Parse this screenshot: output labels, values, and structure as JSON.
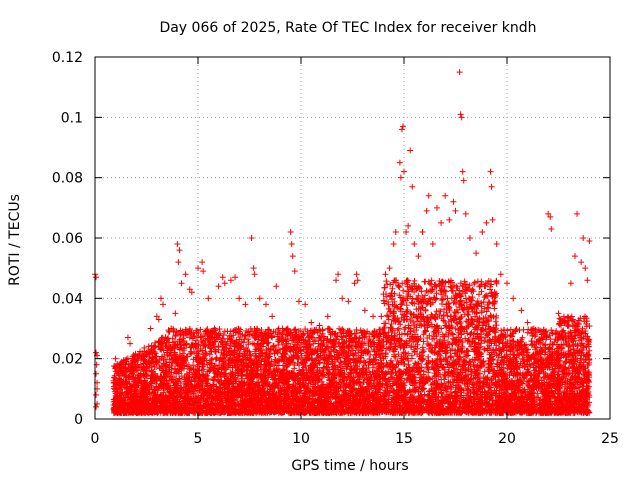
{
  "chart_data": {
    "type": "scatter",
    "title": "Day 066 of 2025, Rate Of TEC Index for receiver kndh",
    "xlabel": "GPS time / hours",
    "ylabel": "ROTI / TECUs",
    "xlim": [
      0,
      25
    ],
    "ylim": [
      0,
      0.12
    ],
    "x_ticks": [
      0,
      5,
      10,
      15,
      20,
      25
    ],
    "x_tick_labels": [
      "0",
      "5",
      "10",
      "15",
      "20",
      "25"
    ],
    "y_ticks": [
      0,
      0.02,
      0.04,
      0.06,
      0.08,
      0.1,
      0.12
    ],
    "y_tick_labels": [
      "0",
      "0.02",
      "0.04",
      "0.06",
      "0.08",
      "0.1",
      "0.12"
    ],
    "grid": true,
    "marker": "+",
    "color": "#ff0000",
    "series": [
      {
        "name": "ROTI",
        "points": [
          [
            0.0,
            0.048
          ],
          [
            0.05,
            0.047
          ],
          [
            0.05,
            0.022
          ],
          [
            0.1,
            0.021
          ],
          [
            0.05,
            0.015
          ],
          [
            0.1,
            0.012
          ],
          [
            0.05,
            0.008
          ],
          [
            0.1,
            0.005
          ],
          [
            0.05,
            0.004
          ],
          [
            0.1,
            0.01
          ],
          [
            0.08,
            0.018
          ],
          [
            1.0,
            0.02
          ],
          [
            1.2,
            0.018
          ],
          [
            1.5,
            0.014
          ],
          [
            1.6,
            0.027
          ],
          [
            1.7,
            0.025
          ],
          [
            2.0,
            0.016
          ],
          [
            2.5,
            0.022
          ],
          [
            2.7,
            0.03
          ],
          [
            3.0,
            0.034
          ],
          [
            3.1,
            0.033
          ],
          [
            3.2,
            0.04
          ],
          [
            3.3,
            0.038
          ],
          [
            3.5,
            0.026
          ],
          [
            3.7,
            0.03
          ],
          [
            3.9,
            0.035
          ],
          [
            4.0,
            0.058
          ],
          [
            4.1,
            0.056
          ],
          [
            4.05,
            0.052
          ],
          [
            4.2,
            0.045
          ],
          [
            4.4,
            0.048
          ],
          [
            4.6,
            0.043
          ],
          [
            4.7,
            0.042
          ],
          [
            5.0,
            0.05
          ],
          [
            5.2,
            0.052
          ],
          [
            5.25,
            0.049
          ],
          [
            5.5,
            0.04
          ],
          [
            5.8,
            0.03
          ],
          [
            6.0,
            0.044
          ],
          [
            6.2,
            0.047
          ],
          [
            6.3,
            0.045
          ],
          [
            6.6,
            0.046
          ],
          [
            6.8,
            0.047
          ],
          [
            7.0,
            0.04
          ],
          [
            7.3,
            0.038
          ],
          [
            7.6,
            0.06
          ],
          [
            7.7,
            0.05
          ],
          [
            7.75,
            0.048
          ],
          [
            8.0,
            0.04
          ],
          [
            8.3,
            0.038
          ],
          [
            8.6,
            0.034
          ],
          [
            8.8,
            0.044
          ],
          [
            9.1,
            0.03
          ],
          [
            9.5,
            0.062
          ],
          [
            9.55,
            0.058
          ],
          [
            9.6,
            0.054
          ],
          [
            9.7,
            0.049
          ],
          [
            9.9,
            0.039
          ],
          [
            10.2,
            0.038
          ],
          [
            10.5,
            0.032
          ],
          [
            10.9,
            0.031
          ],
          [
            11.3,
            0.034
          ],
          [
            11.7,
            0.046
          ],
          [
            11.8,
            0.048
          ],
          [
            12.0,
            0.04
          ],
          [
            12.3,
            0.039
          ],
          [
            12.6,
            0.045
          ],
          [
            12.7,
            0.048
          ],
          [
            12.75,
            0.046
          ],
          [
            13.1,
            0.036
          ],
          [
            13.5,
            0.034
          ],
          [
            13.9,
            0.034
          ],
          [
            14.1,
            0.048
          ],
          [
            14.3,
            0.05
          ],
          [
            14.5,
            0.058
          ],
          [
            14.6,
            0.062
          ],
          [
            14.8,
            0.085
          ],
          [
            14.85,
            0.08
          ],
          [
            14.9,
            0.096
          ],
          [
            14.95,
            0.097
          ],
          [
            15.0,
            0.082
          ],
          [
            15.1,
            0.062
          ],
          [
            15.2,
            0.064
          ],
          [
            15.3,
            0.089
          ],
          [
            15.4,
            0.077
          ],
          [
            15.5,
            0.058
          ],
          [
            15.7,
            0.054
          ],
          [
            15.9,
            0.062
          ],
          [
            16.1,
            0.069
          ],
          [
            16.2,
            0.074
          ],
          [
            16.4,
            0.058
          ],
          [
            16.6,
            0.07
          ],
          [
            16.8,
            0.065
          ],
          [
            17.0,
            0.074
          ],
          [
            17.2,
            0.066
          ],
          [
            17.4,
            0.072
          ],
          [
            17.5,
            0.069
          ],
          [
            17.7,
            0.115
          ],
          [
            17.75,
            0.101
          ],
          [
            17.8,
            0.1
          ],
          [
            17.85,
            0.082
          ],
          [
            17.9,
            0.079
          ],
          [
            18.0,
            0.068
          ],
          [
            18.2,
            0.06
          ],
          [
            18.5,
            0.055
          ],
          [
            18.8,
            0.062
          ],
          [
            19.0,
            0.065
          ],
          [
            19.2,
            0.082
          ],
          [
            19.25,
            0.077
          ],
          [
            19.3,
            0.066
          ],
          [
            19.5,
            0.058
          ],
          [
            19.7,
            0.048
          ],
          [
            20.0,
            0.045
          ],
          [
            20.3,
            0.04
          ],
          [
            20.7,
            0.036
          ],
          [
            21.0,
            0.032
          ],
          [
            21.3,
            0.03
          ],
          [
            21.7,
            0.028
          ],
          [
            22.0,
            0.068
          ],
          [
            22.1,
            0.067
          ],
          [
            22.15,
            0.063
          ],
          [
            22.5,
            0.035
          ],
          [
            22.8,
            0.032
          ],
          [
            23.1,
            0.045
          ],
          [
            23.3,
            0.054
          ],
          [
            23.4,
            0.068
          ],
          [
            23.6,
            0.052
          ],
          [
            23.7,
            0.06
          ],
          [
            23.8,
            0.05
          ],
          [
            23.9,
            0.046
          ],
          [
            24.0,
            0.059
          ]
        ]
      }
    ]
  }
}
